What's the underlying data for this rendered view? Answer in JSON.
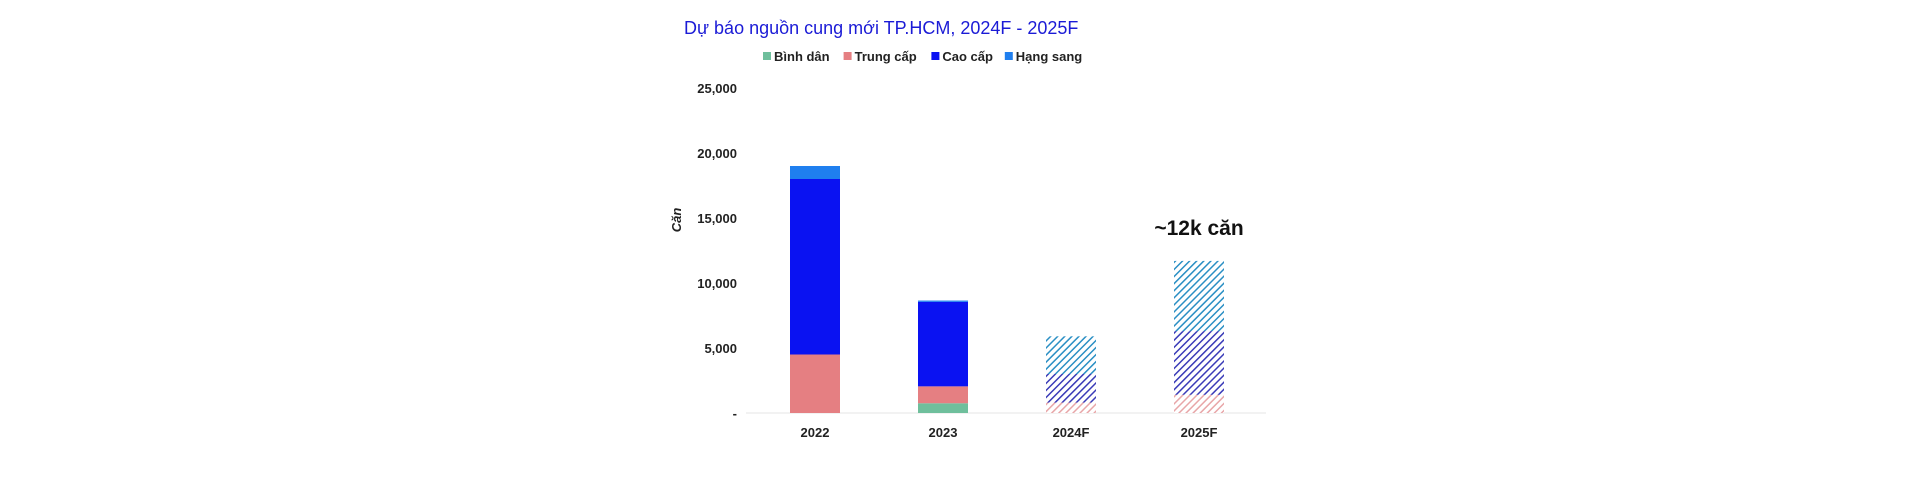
{
  "chart_data": {
    "type": "bar",
    "stacked": true,
    "title": "Dự báo nguồn cung mới TP.HCM, 2024F - 2025F",
    "ylabel": "Căn",
    "xlabel": "",
    "ylim": [
      0,
      25000
    ],
    "yticks": [
      {
        "value": 0,
        "label": "-"
      },
      {
        "value": 5000,
        "label": "5,000"
      },
      {
        "value": 10000,
        "label": "10,000"
      },
      {
        "value": 15000,
        "label": "15,000"
      },
      {
        "value": 20000,
        "label": "20,000"
      },
      {
        "value": 25000,
        "label": "25,000"
      }
    ],
    "grid": false,
    "legend_position": "top",
    "categories": [
      "2022",
      "2023",
      "2024F",
      "2025F"
    ],
    "forecast_categories": [
      "2024F",
      "2025F"
    ],
    "series": [
      {
        "name": "Bình dân",
        "color": "#6fbf9c",
        "forecast_color": "#6fbf9c",
        "values": [
          0,
          750,
          0,
          0
        ]
      },
      {
        "name": "Trung cấp",
        "color": "#e57f82",
        "forecast_color": "#e8a6a8",
        "values": [
          4500,
          1300,
          800,
          1400
        ]
      },
      {
        "name": "Cao cấp",
        "color": "#0a12f2",
        "forecast_color": "#3a3bb8",
        "values": [
          13500,
          6500,
          2200,
          4900
        ]
      },
      {
        "name": "Hạng sang",
        "color": "#1f7fef",
        "forecast_color": "#2a8fc4",
        "values": [
          1000,
          100,
          2900,
          5400
        ]
      }
    ],
    "annotations": [
      {
        "category": "2025F",
        "text": "~12k căn"
      }
    ]
  }
}
